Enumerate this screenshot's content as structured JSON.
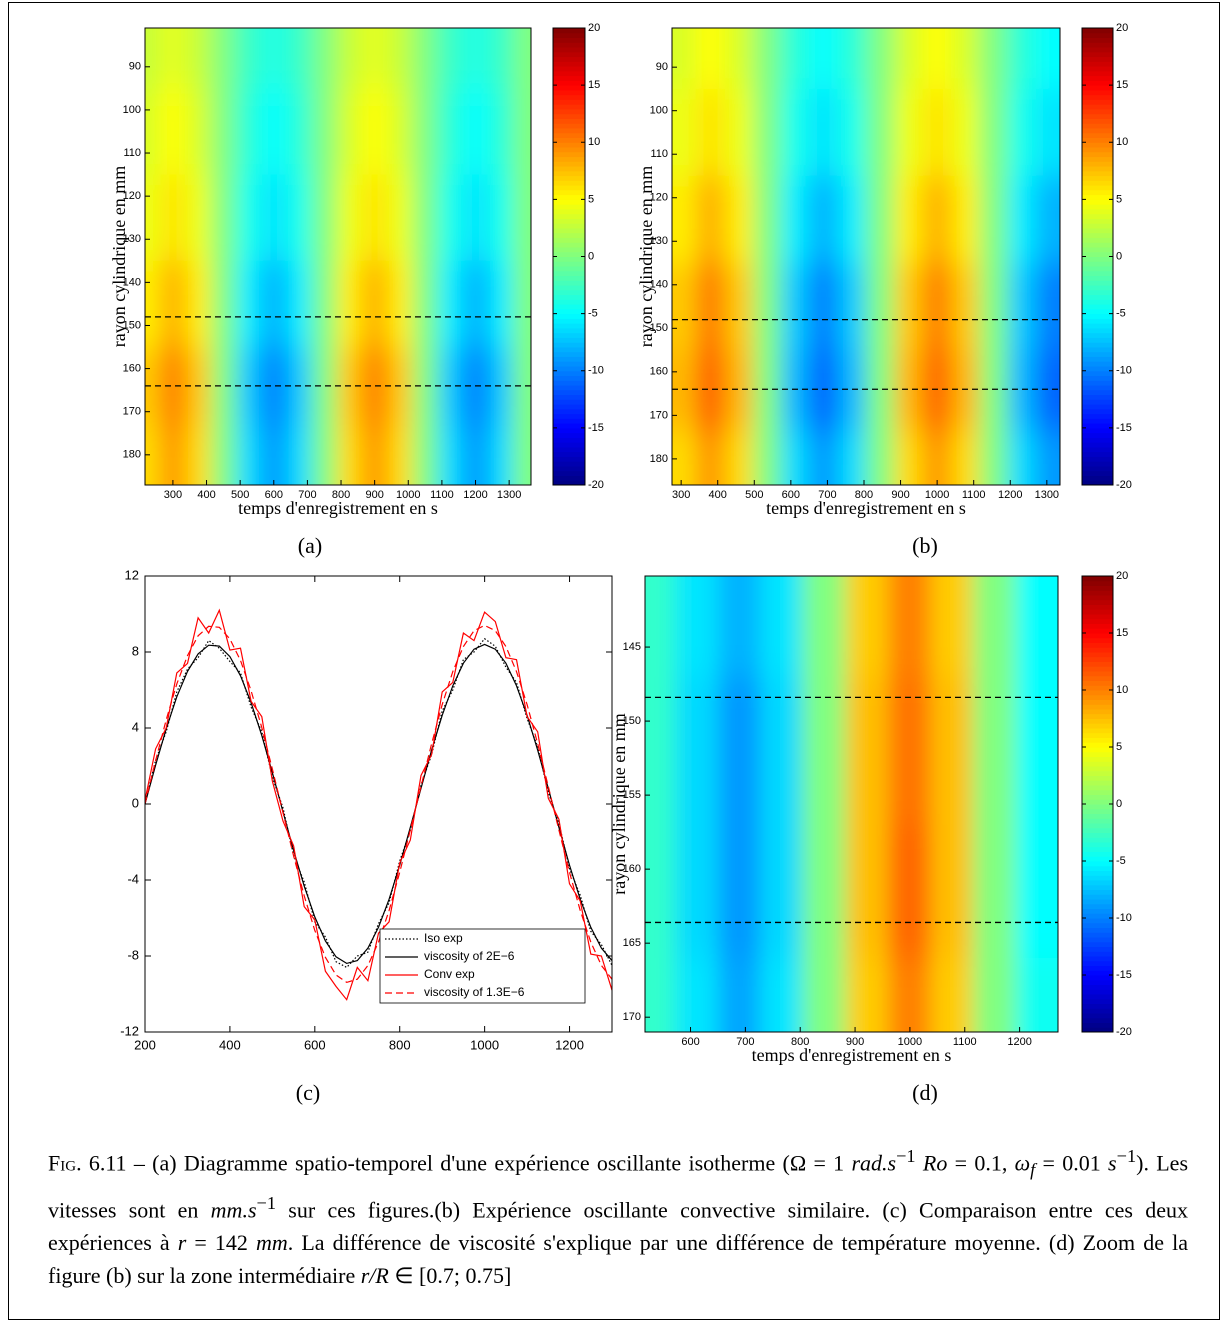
{
  "chart_data": [
    {
      "type": "heatmap",
      "panel": "(a)",
      "xlabel": "temps d'enregistrement en s",
      "ylabel": "rayon cylindrique en mm",
      "x": [
        225,
        300,
        375,
        450,
        525,
        600,
        675,
        750,
        825,
        900,
        975,
        1050,
        1125,
        1200,
        1275,
        1350
      ],
      "y": [
        85,
        105,
        125,
        145,
        165,
        182
      ],
      "z": [
        [
          2.8,
          4,
          2.8,
          0,
          -2.8,
          -4,
          -2.8,
          0,
          2.8,
          4,
          2.8,
          0,
          -2.8,
          -4,
          -2.8,
          0
        ],
        [
          3.5,
          5,
          3.5,
          0,
          -3.5,
          -5,
          -3.5,
          0,
          3.5,
          5,
          3.5,
          0,
          -3.5,
          -5,
          -3.5,
          0
        ],
        [
          4.3,
          6,
          4.3,
          0,
          -4.3,
          -6,
          -4.3,
          0,
          4.3,
          6,
          4.3,
          0,
          -4.3,
          -6,
          -4.3,
          0
        ],
        [
          5.7,
          8,
          5.7,
          0,
          -5.7,
          -8,
          -5.7,
          0,
          5.7,
          8,
          5.7,
          0,
          -5.7,
          -8,
          -5.7,
          0
        ],
        [
          7.1,
          10,
          7.1,
          0,
          -7.1,
          -10,
          -7.1,
          0,
          7.1,
          10,
          7.1,
          0,
          -7.1,
          -10,
          -7.1,
          0
        ],
        [
          6.4,
          9,
          6.4,
          0,
          -6.4,
          -9,
          -6.4,
          0,
          6.4,
          9,
          6.4,
          0,
          -6.4,
          -9,
          -6.4,
          0
        ]
      ],
      "xlim": [
        217,
        1365
      ],
      "ylim": [
        81,
        187
      ],
      "y_inverted": true,
      "xticks": [
        300,
        400,
        500,
        600,
        700,
        800,
        900,
        1000,
        1100,
        1200,
        1300
      ],
      "yticks": [
        90,
        100,
        110,
        120,
        130,
        140,
        150,
        160,
        170,
        180
      ],
      "hlines": [
        148,
        164
      ],
      "colormap": "jet",
      "clim": [
        -20,
        20
      ],
      "cticks": [
        -20,
        -15,
        -10,
        -5,
        0,
        5,
        10,
        15,
        20
      ]
    },
    {
      "type": "heatmap",
      "panel": "(b)",
      "xlabel": "temps d'enregistrement en s",
      "ylabel": "rayon cylindrique en mm",
      "x": [
        300,
        380,
        460,
        535,
        610,
        690,
        765,
        845,
        920,
        1000,
        1075,
        1155,
        1230,
        1310
      ],
      "y": [
        85,
        105,
        125,
        145,
        165,
        182
      ],
      "z": [
        [
          3.5,
          5,
          3.5,
          0,
          -3.5,
          -5,
          -3.5,
          0,
          3.5,
          5,
          3.5,
          0,
          -3.5,
          -5
        ],
        [
          4.3,
          6,
          4.3,
          0,
          -4.3,
          -6,
          -4.3,
          0,
          4.3,
          6,
          4.3,
          0,
          -4.3,
          -6
        ],
        [
          5.7,
          8,
          5.7,
          0,
          -5.7,
          -8,
          -5.7,
          0,
          5.7,
          8,
          5.7,
          0,
          -5.7,
          -8
        ],
        [
          7.1,
          10,
          7.1,
          0,
          -7.1,
          -10,
          -7.1,
          0,
          7.1,
          10,
          7.1,
          0,
          -7.1,
          -10
        ],
        [
          7.8,
          11,
          7.8,
          0,
          -7.8,
          -11,
          -7.8,
          0,
          7.8,
          11,
          7.8,
          0,
          -7.8,
          -11
        ],
        [
          6.4,
          9,
          6.4,
          0,
          -6.4,
          -9,
          -6.4,
          0,
          6.4,
          9,
          6.4,
          0,
          -6.4,
          -9
        ]
      ],
      "xlim": [
        275,
        1336
      ],
      "ylim": [
        81,
        186
      ],
      "y_inverted": true,
      "xticks": [
        300,
        400,
        500,
        600,
        700,
        800,
        900,
        1000,
        1100,
        1200,
        1300
      ],
      "yticks": [
        90,
        100,
        110,
        120,
        130,
        140,
        150,
        160,
        170,
        180
      ],
      "hlines": [
        148,
        164
      ],
      "colormap": "jet",
      "clim": [
        -20,
        20
      ],
      "cticks": [
        -20,
        -15,
        -10,
        -5,
        0,
        5,
        10,
        15,
        20
      ]
    },
    {
      "type": "line",
      "panel": "(c)",
      "x": [
        200,
        225,
        250,
        275,
        300,
        325,
        350,
        375,
        400,
        425,
        450,
        475,
        500,
        525,
        550,
        575,
        600,
        625,
        650,
        675,
        700,
        725,
        750,
        775,
        800,
        825,
        850,
        875,
        900,
        925,
        950,
        975,
        1000,
        1025,
        1050,
        1075,
        1100,
        1125,
        1150,
        1175,
        1200,
        1225,
        1250,
        1275,
        1300
      ],
      "series": [
        {
          "name": "Iso exp",
          "color": "#000000",
          "style": "dotted",
          "values": [
            0,
            2.3,
            3.8,
            5.9,
            7.1,
            7.7,
            8.6,
            8.2,
            7.5,
            6.9,
            5.1,
            3.8,
            1.4,
            -0.2,
            -2.7,
            -4.1,
            -6.2,
            -7.0,
            -8.3,
            -8.6,
            -8.0,
            -7.8,
            -6.3,
            -5.2,
            -3.0,
            -1.4,
            1.0,
            2.6,
            4.9,
            6.0,
            7.6,
            8.0,
            8.7,
            8.3,
            7.2,
            6.4,
            4.5,
            3.0,
            0.6,
            -1.0,
            -3.4,
            -4.8,
            -6.7,
            -7.4,
            -8.5
          ]
        },
        {
          "name": "viscosity of 2E−6",
          "color": "#000000",
          "style": "solid",
          "values": [
            0,
            2.04,
            3.96,
            5.64,
            6.98,
            7.9,
            8.36,
            8.31,
            7.76,
            6.75,
            5.33,
            3.6,
            1.64,
            -0.41,
            -2.44,
            -4.32,
            -5.94,
            -7.21,
            -8.04,
            -8.39,
            -8.24,
            -7.59,
            -6.49,
            -5.01,
            -3.22,
            -1.23,
            0.82,
            2.83,
            4.67,
            6.22,
            7.41,
            8.15,
            8.4,
            8.15,
            7.41,
            6.22,
            4.67,
            2.83,
            0.82,
            -1.23,
            -3.22,
            -5.01,
            -6.49,
            -7.59,
            -8.24
          ]
        },
        {
          "name": "Conv exp",
          "color": "#ff0000",
          "style": "solid",
          "values": [
            0.2,
            2.9,
            4.0,
            6.9,
            7.4,
            9.8,
            9.0,
            10.2,
            8.1,
            8.2,
            5.4,
            4.6,
            1.2,
            -0.9,
            -2.2,
            -5.4,
            -6.1,
            -8.8,
            -9.6,
            -10.3,
            -8.6,
            -9.3,
            -6.8,
            -6.2,
            -3.1,
            -1.9,
            1.5,
            2.6,
            5.9,
            6.4,
            9.0,
            8.6,
            10.1,
            9.6,
            7.7,
            7.6,
            4.6,
            3.8,
            0.3,
            -0.8,
            -4.2,
            -5.1,
            -7.9,
            -8.0,
            -9.8
          ]
        },
        {
          "name": "viscosity of 1.3E−6",
          "color": "#ff0000",
          "style": "dashed",
          "values": [
            0,
            2.28,
            4.43,
            6.32,
            7.81,
            8.85,
            9.35,
            9.3,
            8.69,
            7.55,
            5.96,
            4.02,
            1.83,
            -0.46,
            -2.73,
            -4.83,
            -6.65,
            -8.07,
            -9.0,
            -9.39,
            -9.22,
            -8.5,
            -7.27,
            -5.6,
            -3.6,
            -1.37,
            0.92,
            3.17,
            5.23,
            6.97,
            8.29,
            9.12,
            9.4,
            9.12,
            8.29,
            6.97,
            5.23,
            3.17,
            0.92,
            -1.37,
            -3.6,
            -5.6,
            -7.27,
            -8.5,
            -9.22
          ]
        }
      ],
      "xlim": [
        200,
        1300
      ],
      "ylim": [
        -12,
        12
      ],
      "xticks": [
        200,
        400,
        600,
        800,
        1000,
        1200
      ],
      "yticks": [
        -12,
        -8,
        -4,
        0,
        4,
        8,
        12
      ],
      "legend_loc": "lower right"
    },
    {
      "type": "heatmap",
      "panel": "(d)",
      "xlabel": "temps d'enregistrement en s",
      "ylabel": "rayon cylindrique en mm",
      "x": [
        535,
        610,
        690,
        765,
        845,
        920,
        1000,
        1075,
        1155,
        1230
      ],
      "y": [
        142,
        152,
        162,
        170
      ],
      "z": [
        [
          -3,
          -6,
          -8,
          -6,
          0,
          7,
          10,
          7,
          0,
          -5
        ],
        [
          -3,
          -6.5,
          -9,
          -6.5,
          0,
          7.5,
          10.5,
          7.5,
          0,
          -5
        ],
        [
          -3,
          -6.5,
          -9,
          -6.5,
          0,
          7.5,
          11,
          7.5,
          0,
          -5
        ],
        [
          -3,
          -6,
          -8.5,
          -6,
          0,
          7,
          10,
          7,
          0,
          -4.5
        ]
      ],
      "xlim": [
        517,
        1270
      ],
      "ylim": [
        140.2,
        171
      ],
      "y_inverted": true,
      "xticks": [
        600,
        700,
        800,
        900,
        1000,
        1100,
        1200
      ],
      "yticks": [
        145,
        150,
        155,
        160,
        165,
        170
      ],
      "hlines": [
        148.4,
        163.6
      ],
      "colormap": "jet",
      "clim": [
        -20,
        20
      ],
      "cticks": [
        -20,
        -15,
        -10,
        -5,
        0,
        5,
        10,
        15,
        20
      ]
    }
  ],
  "caption": {
    "parts": [
      "Fig.",
      " 6.11 – (a) Diagramme spatio-temporel d'une expérience oscillante isotherme (Ω = 1 ",
      "rad.s",
      "−1",
      " ",
      "Ro",
      " = 0.1, ",
      "ω",
      "f",
      " = 0.01 ",
      "s",
      "−1",
      "). Les vitesses sont en ",
      "mm.s",
      "−1",
      " sur ces figures.(b) Expérience oscillante convective similaire. (c) Comparaison entre ces deux expériences à ",
      "r",
      " = 142 ",
      "mm",
      ". La différence de viscosité s'explique par une différence de température moyenne. (d) Zoom de la figure (b) sur la zone intermédiaire ",
      "r/R",
      " ∈ [0.7; 0.75]"
    ]
  }
}
